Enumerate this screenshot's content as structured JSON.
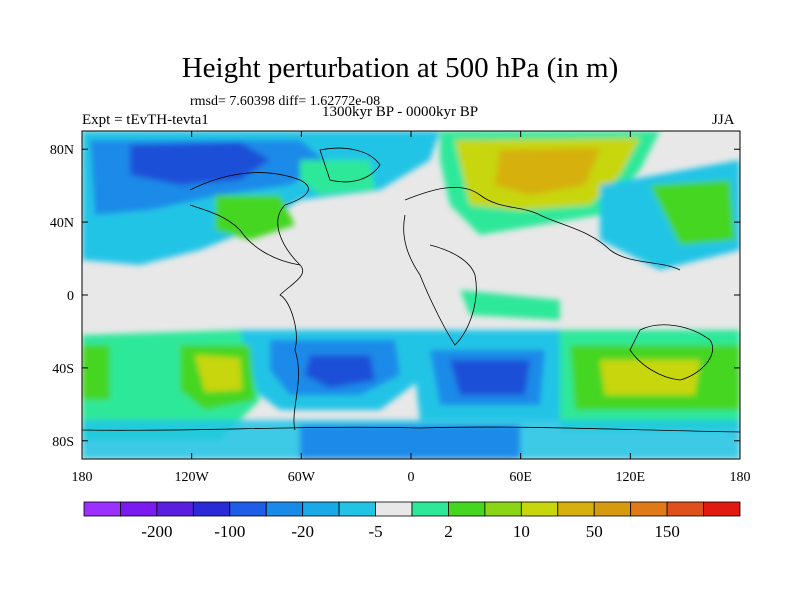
{
  "title": "Height perturbation at 500 hPa (in m)",
  "stats_line": "rmsd= 7.60398 diff= 1.62772e-08",
  "period": "1300kyr BP - 0000kyr BP",
  "experiment": "Expt = tEvTH-tevta1",
  "season": "JJA",
  "lat_ticks": [
    "80N",
    "40N",
    "0",
    "40S",
    "80S"
  ],
  "lon_ticks": [
    "180",
    "120W",
    "60W",
    "0",
    "60E",
    "120E",
    "180"
  ],
  "colorbar": {
    "colors": [
      "#9b30ff",
      "#7a1cf0",
      "#5a1ee0",
      "#2a2ad8",
      "#1e5ee6",
      "#1a8ae8",
      "#19a8e8",
      "#22c4e6",
      "#e8e8e8",
      "#2ee89a",
      "#44d620",
      "#8ad614",
      "#c8d60e",
      "#d6b00c",
      "#d69a10",
      "#e07a16",
      "#e0501c",
      "#e01a10"
    ],
    "labels": [
      "-200",
      "-100",
      "-20",
      "-5",
      "2",
      "10",
      "50",
      "150"
    ]
  },
  "palette": {
    "strong_negative": "#1e50d8",
    "moderate_negative": "#1a8ae8",
    "weak_negative": "#22c4e6",
    "neutral": "#e8e8e8",
    "weak_positive": "#2ee89a",
    "moderate_positive": "#44d620",
    "strong_positive": "#c8d60e",
    "very_strong_positive": "#d6b00c"
  }
}
